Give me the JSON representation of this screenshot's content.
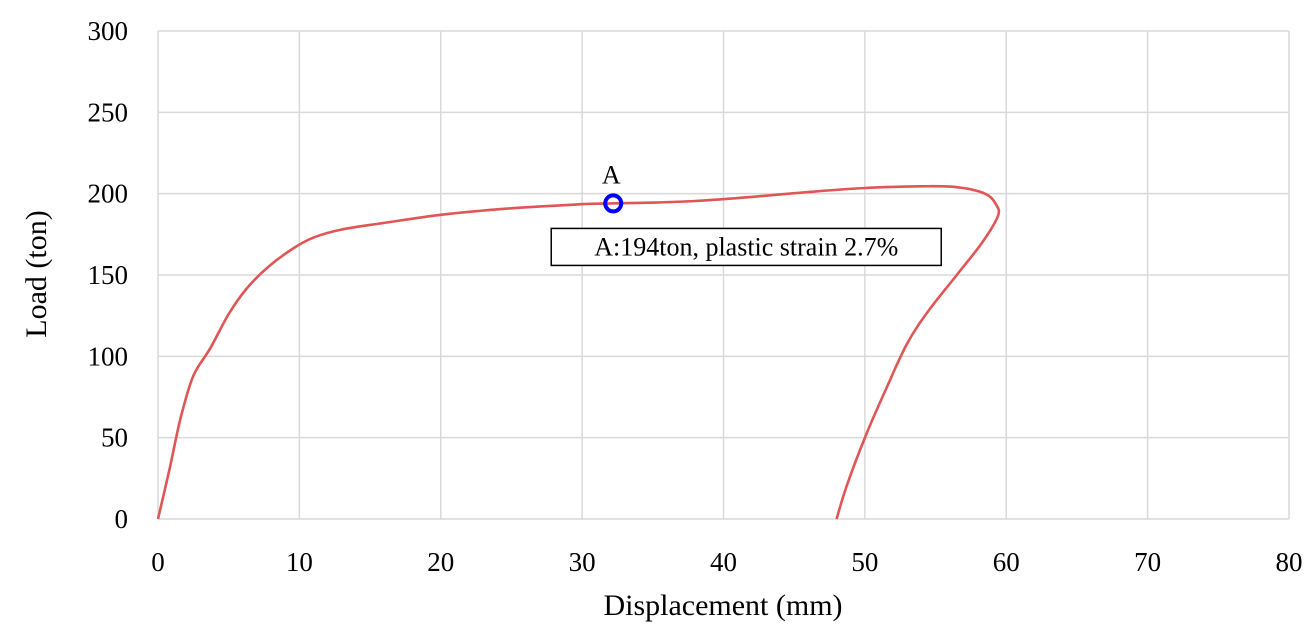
{
  "chart_data": {
    "type": "line",
    "xlabel": "Displacement (mm)",
    "ylabel": "Load (ton)",
    "xlim": [
      0,
      80
    ],
    "ylim": [
      0,
      300
    ],
    "xticks": [
      0,
      10,
      20,
      30,
      40,
      50,
      60,
      70,
      80
    ],
    "yticks": [
      0,
      50,
      100,
      150,
      200,
      250,
      300
    ],
    "grid": true,
    "legend": "none",
    "series": [
      {
        "color": "#e05555",
        "points": [
          [
            0,
            0
          ],
          [
            0.8,
            30
          ],
          [
            1.6,
            62
          ],
          [
            2.5,
            88
          ],
          [
            3.7,
            105
          ],
          [
            5,
            126
          ],
          [
            6.3,
            142
          ],
          [
            7.8,
            155
          ],
          [
            9.5,
            166
          ],
          [
            11,
            173
          ],
          [
            13,
            178
          ],
          [
            16,
            182
          ],
          [
            20,
            187
          ],
          [
            25,
            191
          ],
          [
            30,
            193.5
          ],
          [
            32,
            194
          ],
          [
            35,
            194.5
          ],
          [
            38,
            195.5
          ],
          [
            42,
            198
          ],
          [
            46,
            201
          ],
          [
            50,
            203.5
          ],
          [
            54,
            204.5
          ],
          [
            56.5,
            204
          ],
          [
            58.5,
            200
          ],
          [
            59.3,
            193
          ],
          [
            59.4,
            186
          ],
          [
            58.3,
            170
          ],
          [
            56.5,
            150
          ],
          [
            54.5,
            128
          ],
          [
            53,
            108
          ],
          [
            51.5,
            80
          ],
          [
            50,
            50
          ],
          [
            48.7,
            20
          ],
          [
            48,
            0
          ]
        ]
      }
    ],
    "annotations": [
      {
        "point_label": "A",
        "x": 32.2,
        "y": 194,
        "marker_color": "#0000ff",
        "text": "A:194ton, plastic strain 2.7%"
      }
    ]
  }
}
